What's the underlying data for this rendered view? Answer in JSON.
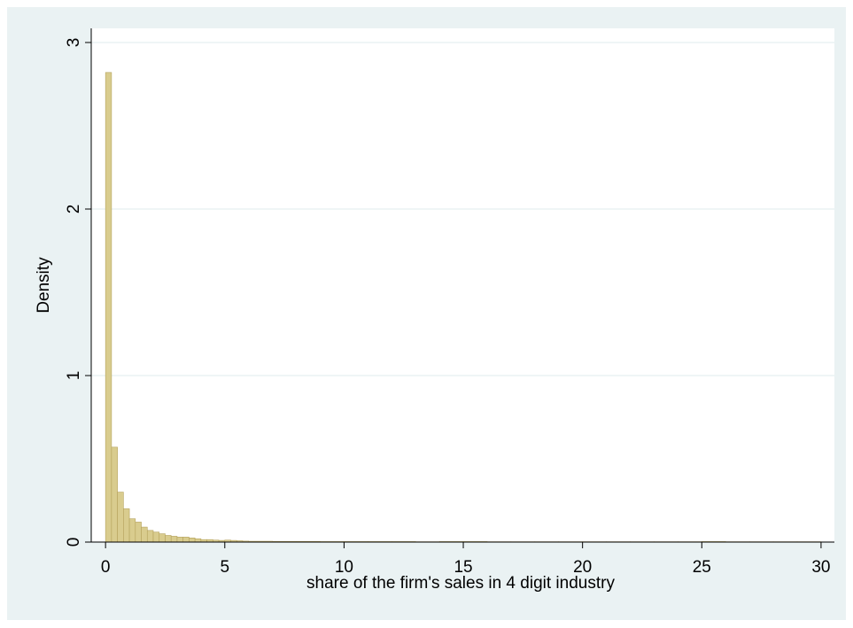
{
  "chart_data": {
    "type": "histogram",
    "x_label": "share of the firm's sales in 4 digit industry",
    "y_label": "Density",
    "bins": [
      0,
      0.25,
      0.5,
      0.75,
      1,
      1.25,
      1.5,
      1.75,
      2,
      2.25,
      2.5,
      2.75,
      3,
      3.25,
      3.5,
      3.75,
      4,
      4.25,
      4.5,
      4.75,
      5,
      5.25,
      5.5,
      5.75,
      6,
      7,
      8,
      9,
      10,
      11,
      12,
      13,
      14,
      15,
      16,
      17,
      18,
      19,
      20,
      21,
      22,
      23,
      24,
      25,
      26,
      27,
      28,
      29,
      30
    ],
    "values": [
      2.82,
      0.57,
      0.3,
      0.2,
      0.14,
      0.12,
      0.09,
      0.07,
      0.06,
      0.05,
      0.04,
      0.035,
      0.03,
      0.03,
      0.025,
      0.02,
      0.015,
      0.015,
      0.012,
      0.01,
      0.012,
      0.01,
      0.008,
      0.006,
      0.005,
      0.004,
      0.004,
      0.003,
      0.003,
      0.003,
      0.003,
      0.002,
      0.003,
      0.003,
      0.002,
      0.002,
      0.002,
      0.002,
      0.002,
      0.002,
      0.002,
      0.002,
      0.002,
      0.003,
      0.002,
      0.002,
      0.002,
      0.002
    ],
    "color": "#d9cc8e",
    "edge_color": "#b5a25c",
    "xlim": [
      -0.6,
      30.56
    ],
    "ylim": [
      0,
      3.085
    ],
    "xticks": [
      0,
      5,
      10,
      15,
      20,
      25,
      30
    ],
    "yticks": [
      0,
      1,
      2,
      3
    ],
    "grid": true
  }
}
